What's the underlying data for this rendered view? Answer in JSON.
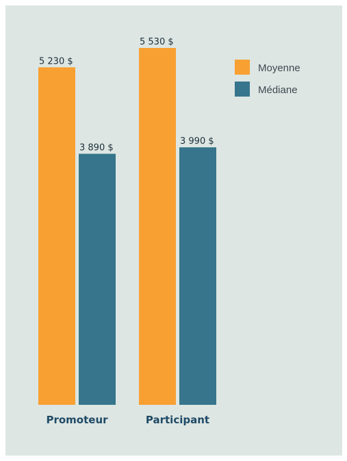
{
  "chart_data": {
    "type": "bar",
    "categories": [
      "Promoteur",
      "Participant"
    ],
    "series": [
      {
        "name": "Moyenne",
        "color": "#f8a032",
        "values": [
          5230,
          5530
        ],
        "labels": [
          "5 230 $",
          "5 530 $"
        ]
      },
      {
        "name": "Médiane",
        "color": "#36758c",
        "values": [
          3890,
          3990
        ],
        "labels": [
          "3 890 $",
          "3 990 $"
        ]
      }
    ],
    "ylim": [
      0,
      5530
    ],
    "grid": false,
    "legend": "top-right",
    "background": "#dde6e3",
    "category_label_color": "#1f4a66"
  }
}
